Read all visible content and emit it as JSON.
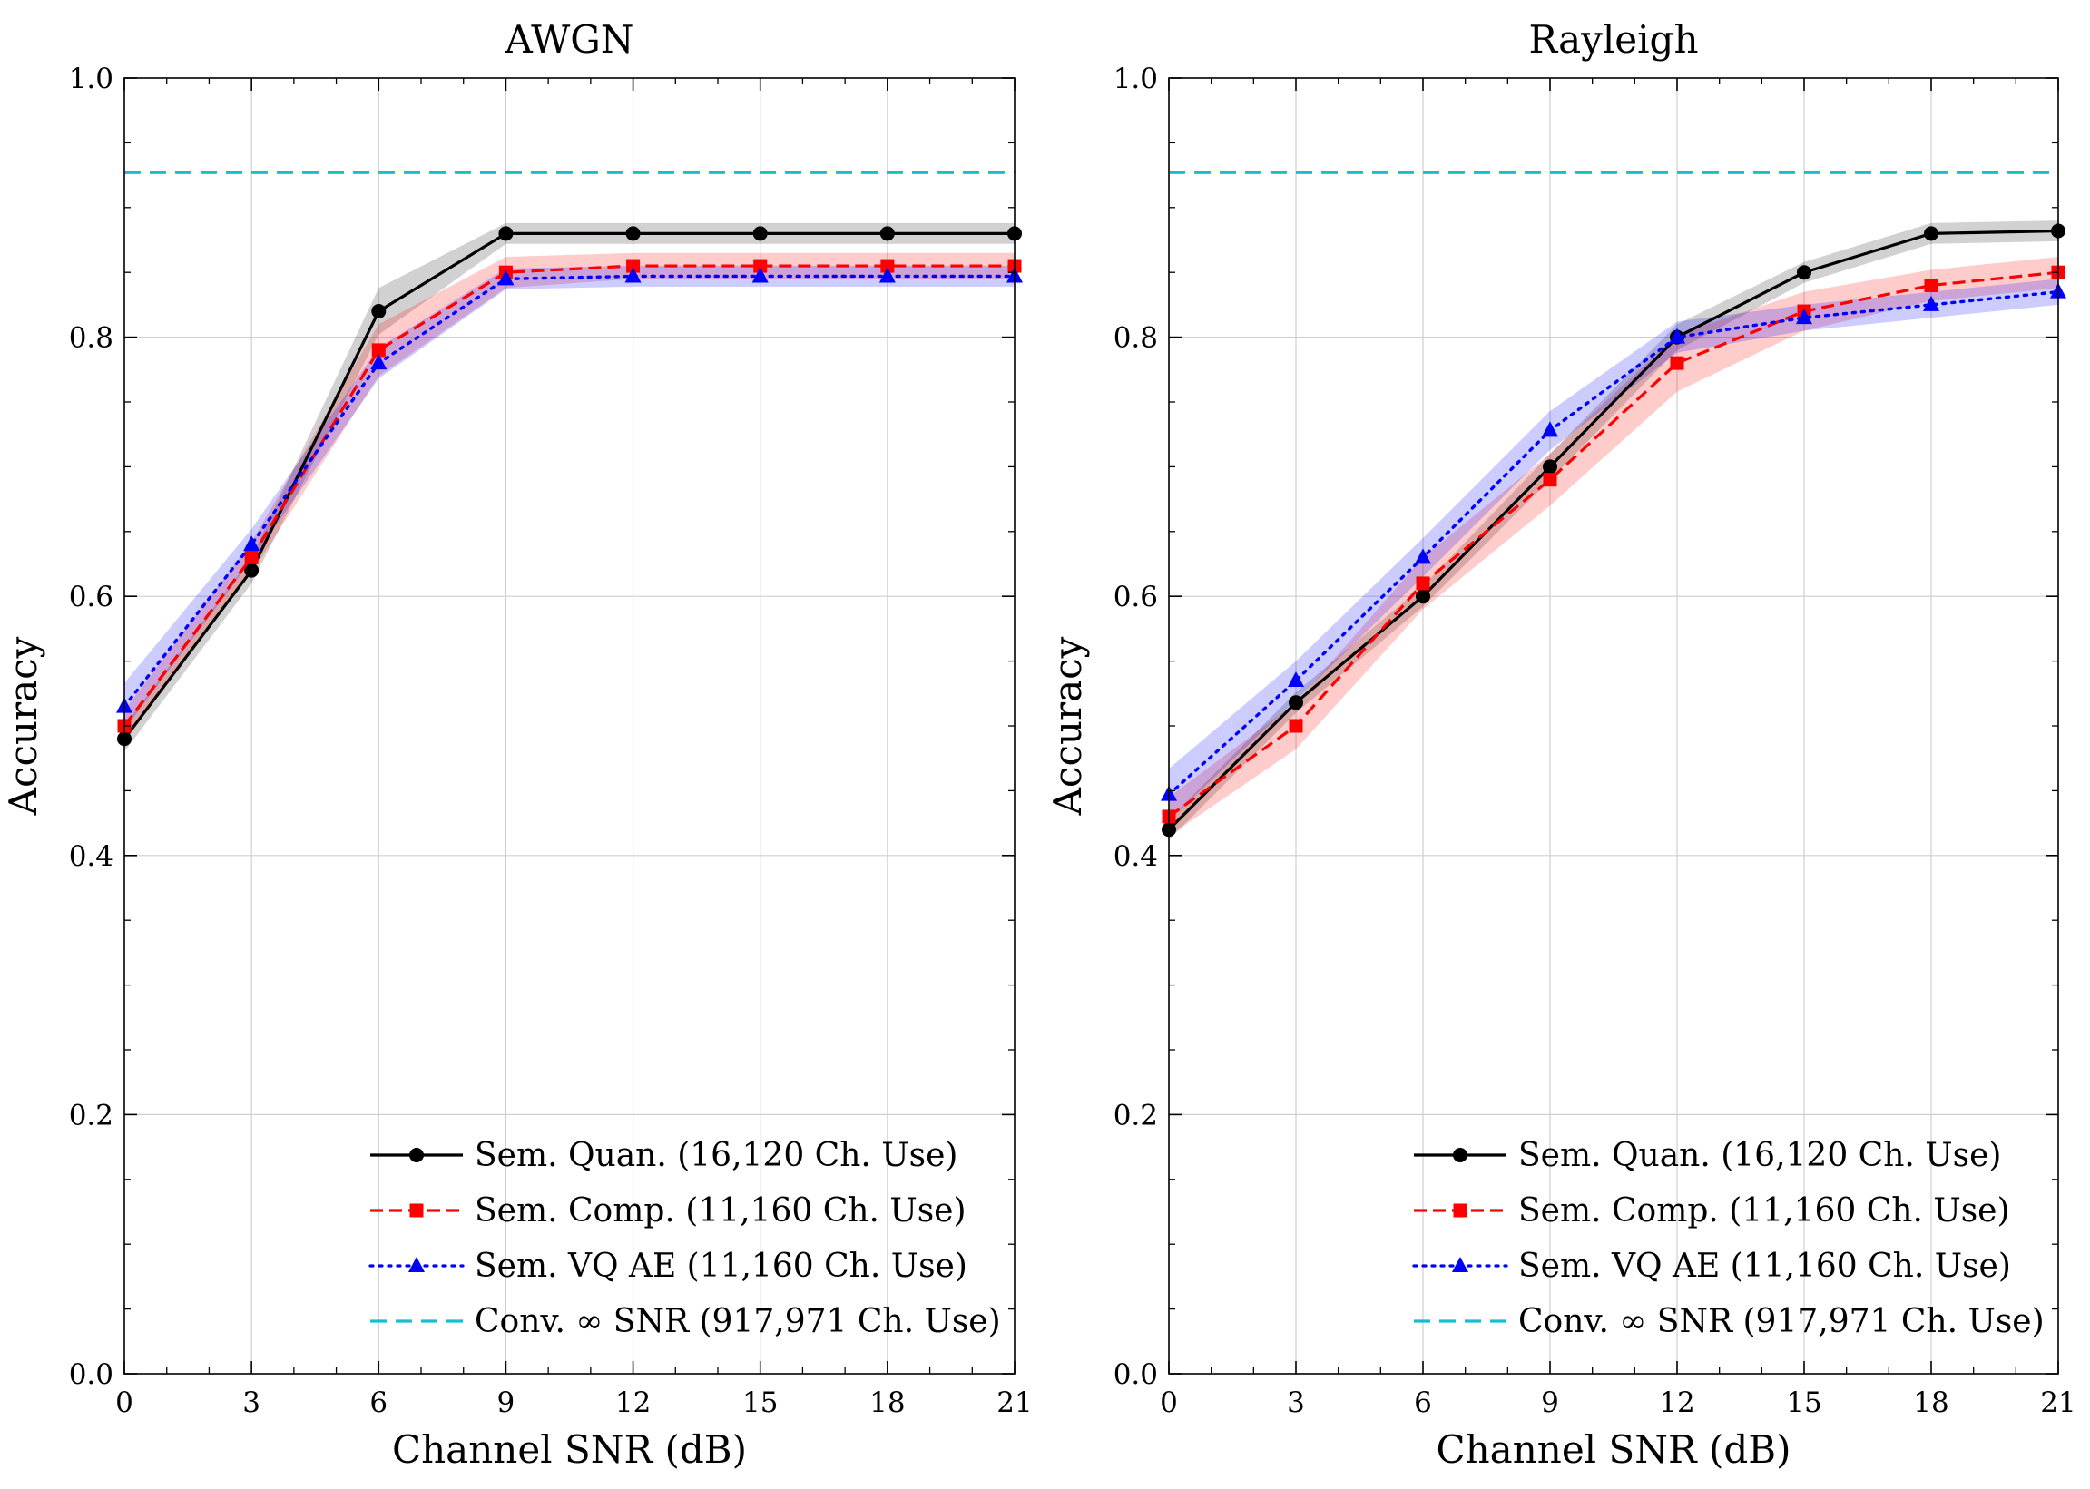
{
  "chart_data": [
    {
      "type": "line",
      "title": "AWGN",
      "xlabel": "Channel SNR (dB)",
      "ylabel": "Accuracy",
      "xlim": [
        0,
        21
      ],
      "ylim": [
        0.0,
        1.0
      ],
      "x": [
        0,
        3,
        6,
        9,
        12,
        15,
        18,
        21
      ],
      "xticks": [
        "0",
        "3",
        "6",
        "9",
        "12",
        "15",
        "18",
        "21"
      ],
      "yticks": [
        "0.0",
        "0.2",
        "0.4",
        "0.6",
        "0.8",
        "1.0"
      ],
      "grid": true,
      "legend_position": "lower-right",
      "series": [
        {
          "name": "Sem. Quan. (16,120 Ch. Use)",
          "color": "#000000",
          "line": "solid",
          "marker": "circle",
          "values": [
            0.49,
            0.62,
            0.82,
            0.88,
            0.88,
            0.88,
            0.88,
            0.88
          ],
          "band": [
            0.01,
            0.01,
            0.018,
            0.008,
            0.008,
            0.008,
            0.008,
            0.008
          ]
        },
        {
          "name": "Sem. Comp. (11,160 Ch. Use)",
          "color": "#ff0000",
          "line": "dashed",
          "marker": "square",
          "values": [
            0.5,
            0.63,
            0.79,
            0.85,
            0.855,
            0.855,
            0.855,
            0.855
          ],
          "band": [
            0.012,
            0.012,
            0.02,
            0.012,
            0.01,
            0.01,
            0.01,
            0.01
          ]
        },
        {
          "name": "Sem. VQ AE (11,160 Ch. Use)",
          "color": "#0000ff",
          "line": "dotted",
          "marker": "triangle",
          "values": [
            0.515,
            0.64,
            0.78,
            0.845,
            0.847,
            0.847,
            0.847,
            0.847
          ],
          "band": [
            0.018,
            0.012,
            0.012,
            0.008,
            0.008,
            0.008,
            0.008,
            0.008
          ]
        },
        {
          "name": "Conv. ∞ SNR (917,971 Ch. Use)",
          "color": "#17becf",
          "line": "dashed-long",
          "marker": "none",
          "values": [
            0.927,
            0.927,
            0.927,
            0.927,
            0.927,
            0.927,
            0.927,
            0.927
          ]
        }
      ]
    },
    {
      "type": "line",
      "title": "Rayleigh",
      "xlabel": "Channel SNR (dB)",
      "ylabel": "Accuracy",
      "xlim": [
        0,
        21
      ],
      "ylim": [
        0.0,
        1.0
      ],
      "x": [
        0,
        3,
        6,
        9,
        12,
        15,
        18,
        21
      ],
      "xticks": [
        "0",
        "3",
        "6",
        "9",
        "12",
        "15",
        "18",
        "21"
      ],
      "yticks": [
        "0.0",
        "0.2",
        "0.4",
        "0.6",
        "0.8",
        "1.0"
      ],
      "grid": true,
      "legend_position": "lower-right",
      "series": [
        {
          "name": "Sem. Quan. (16,120 Ch. Use)",
          "color": "#000000",
          "line": "solid",
          "marker": "circle",
          "values": [
            0.42,
            0.518,
            0.6,
            0.7,
            0.8,
            0.85,
            0.88,
            0.882
          ],
          "band": [
            0.008,
            0.008,
            0.008,
            0.01,
            0.01,
            0.008,
            0.008,
            0.008
          ]
        },
        {
          "name": "Sem. Comp. (11,160 Ch. Use)",
          "color": "#ff0000",
          "line": "dashed",
          "marker": "square",
          "values": [
            0.43,
            0.5,
            0.61,
            0.69,
            0.78,
            0.82,
            0.84,
            0.85
          ],
          "band": [
            0.015,
            0.018,
            0.02,
            0.02,
            0.022,
            0.015,
            0.012,
            0.012
          ]
        },
        {
          "name": "Sem. VQ AE (11,160 Ch. Use)",
          "color": "#0000ff",
          "line": "dotted",
          "marker": "triangle",
          "values": [
            0.447,
            0.535,
            0.63,
            0.728,
            0.8,
            0.815,
            0.825,
            0.835
          ],
          "band": [
            0.02,
            0.015,
            0.015,
            0.015,
            0.012,
            0.01,
            0.01,
            0.01
          ]
        },
        {
          "name": "Conv. ∞ SNR (917,971 Ch. Use)",
          "color": "#17becf",
          "line": "dashed-long",
          "marker": "none",
          "values": [
            0.927,
            0.927,
            0.927,
            0.927,
            0.927,
            0.927,
            0.927,
            0.927
          ]
        }
      ]
    }
  ]
}
